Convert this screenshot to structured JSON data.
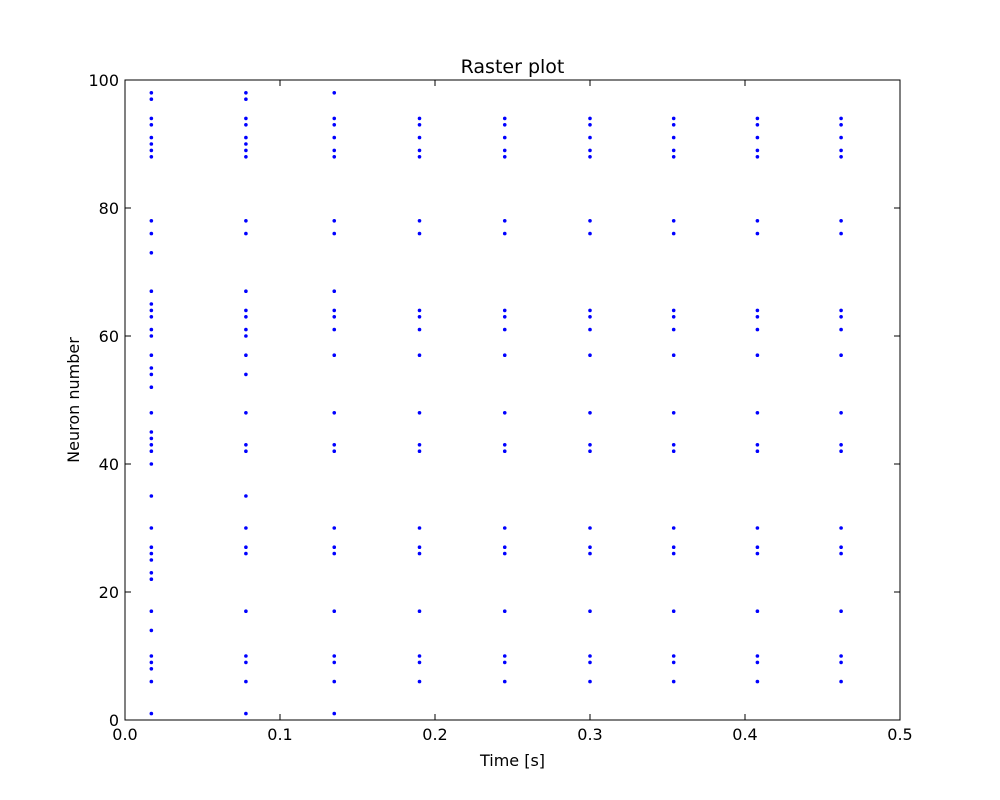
{
  "chart_data": {
    "type": "scatter",
    "title": "Raster plot",
    "xlabel": "Time [s]",
    "ylabel": "Neuron number",
    "xlim": [
      0.0,
      0.5
    ],
    "ylim": [
      0,
      100
    ],
    "xticks": [
      "0.0",
      "0.1",
      "0.2",
      "0.3",
      "0.4",
      "0.5"
    ],
    "yticks": [
      "0",
      "20",
      "40",
      "60",
      "80",
      "100"
    ],
    "grid": false,
    "legend": "none",
    "marker_color": "#0000ff",
    "spike_times": [
      0.017,
      0.078,
      0.135,
      0.19,
      0.245,
      0.3,
      0.354,
      0.408,
      0.462
    ],
    "spikes_by_time": [
      [
        1,
        6,
        8,
        9,
        10,
        14,
        17,
        22,
        23,
        25,
        26,
        27,
        30,
        35,
        40,
        42,
        43,
        44,
        45,
        48,
        52,
        54,
        55,
        57,
        60,
        61,
        63,
        64,
        65,
        67,
        73,
        76,
        78,
        88,
        89,
        90,
        91,
        93,
        94,
        97,
        98
      ],
      [
        1,
        6,
        9,
        10,
        17,
        26,
        27,
        30,
        35,
        42,
        43,
        48,
        54,
        57,
        60,
        61,
        63,
        64,
        67,
        76,
        78,
        88,
        89,
        90,
        91,
        93,
        94,
        97,
        98
      ],
      [
        1,
        6,
        9,
        10,
        17,
        26,
        27,
        30,
        42,
        43,
        48,
        57,
        61,
        63,
        64,
        67,
        76,
        78,
        88,
        89,
        91,
        93,
        94,
        98
      ],
      [
        6,
        9,
        10,
        17,
        26,
        27,
        30,
        42,
        43,
        48,
        57,
        61,
        63,
        64,
        76,
        78,
        88,
        89,
        91,
        93,
        94
      ],
      [
        6,
        9,
        10,
        17,
        26,
        27,
        30,
        42,
        43,
        48,
        57,
        61,
        63,
        64,
        76,
        78,
        88,
        89,
        91,
        93,
        94
      ],
      [
        6,
        9,
        10,
        17,
        26,
        27,
        30,
        42,
        43,
        48,
        57,
        61,
        63,
        64,
        76,
        78,
        88,
        89,
        91,
        93,
        94
      ],
      [
        6,
        9,
        10,
        17,
        26,
        27,
        30,
        42,
        43,
        48,
        57,
        61,
        63,
        64,
        76,
        78,
        88,
        89,
        91,
        93,
        94
      ],
      [
        6,
        9,
        10,
        17,
        26,
        27,
        30,
        42,
        43,
        48,
        57,
        61,
        63,
        64,
        76,
        78,
        88,
        89,
        91,
        93,
        94
      ],
      [
        6,
        9,
        10,
        17,
        26,
        27,
        30,
        42,
        43,
        48,
        57,
        61,
        63,
        64,
        76,
        78,
        88,
        89,
        91,
        93,
        94
      ]
    ]
  }
}
